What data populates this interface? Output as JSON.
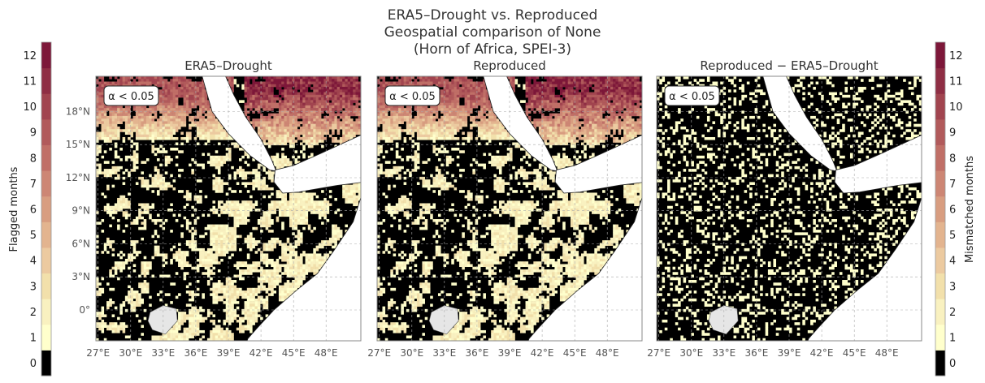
{
  "figure": {
    "title_lines": [
      "ERA5–Drought vs. Reproduced",
      "Geospatial comparison of None",
      "(Horn of Africa, SPEI-3)"
    ]
  },
  "colorbars": {
    "left": {
      "label": "Flagged months"
    },
    "right": {
      "label": "Mismatched months"
    },
    "ticks": [
      "0",
      "1",
      "2",
      "3",
      "4",
      "5",
      "6",
      "7",
      "8",
      "9",
      "10",
      "11",
      "12"
    ],
    "colors": [
      "#000000",
      "#ffffcc",
      "#f9f1c0",
      "#f2e0ab",
      "#eccaa0",
      "#e3b48f",
      "#d89d80",
      "#cd8674",
      "#c06f67",
      "#b15a5b",
      "#a1444f",
      "#8f2e44",
      "#7d1739"
    ]
  },
  "chart_data": [
    {
      "type": "heatmap",
      "title": "ERA5–Drought",
      "annotation": "α < 0.05",
      "x_ticks": [
        "27°E",
        "30°E",
        "33°E",
        "36°E",
        "39°E",
        "42°E",
        "45°E",
        "48°E"
      ],
      "y_ticks": [
        "18°N",
        "15°N",
        "12°N",
        "9°N",
        "6°N",
        "3°N",
        "0°"
      ],
      "xlim": [
        26.8,
        51.2
      ],
      "ylim": [
        -2.8,
        21.2
      ],
      "value_range": [
        0,
        12
      ],
      "grid": true,
      "hotspot_values": {
        "arabia_north": 11,
        "sudan_north": 9,
        "ogaden_south": 2
      }
    },
    {
      "type": "heatmap",
      "title": "Reproduced",
      "annotation": "α < 0.05",
      "x_ticks": [
        "27°E",
        "30°E",
        "33°E",
        "36°E",
        "39°E",
        "42°E",
        "45°E",
        "48°E"
      ],
      "y_ticks": [],
      "xlim": [
        26.8,
        51.2
      ],
      "ylim": [
        -2.8,
        21.2
      ],
      "value_range": [
        0,
        12
      ],
      "grid": true,
      "hotspot_values": {
        "arabia_north": 11,
        "sudan_north": 9,
        "ogaden_south": 2
      }
    },
    {
      "type": "heatmap",
      "title": "Reproduced − ERA5–Drought",
      "annotation": "α < 0.05",
      "x_ticks": [
        "27°E",
        "30°E",
        "33°E",
        "36°E",
        "39°E",
        "42°E",
        "45°E",
        "48°E"
      ],
      "y_ticks": [],
      "xlim": [
        26.8,
        51.2
      ],
      "ylim": [
        -2.8,
        21.2
      ],
      "value_range": [
        0,
        12
      ],
      "grid": true,
      "hotspot_values": {
        "speckle": 1
      }
    }
  ]
}
